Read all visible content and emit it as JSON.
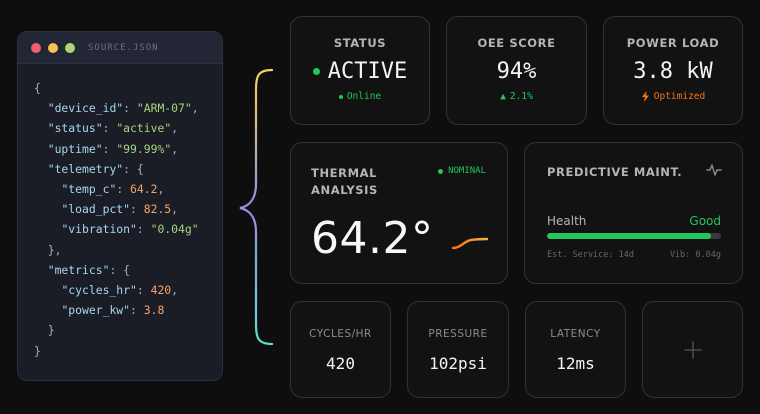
{
  "editor": {
    "filename": "SOURCE.JSON",
    "json": {
      "device_id": "ARM-07",
      "status": "active",
      "uptime": "99.99%",
      "telemetry": {
        "temp_c": "64.2",
        "load_pct": "82.5",
        "vibration": "0.04g"
      },
      "metrics": {
        "cycles_hr": "420",
        "power_kw": "3.8"
      }
    }
  },
  "cards": {
    "status": {
      "label": "STATUS",
      "value": "ACTIVE",
      "sub": "Online"
    },
    "oee": {
      "label": "OEE SCORE",
      "value": "94%",
      "sub": "2.1%"
    },
    "power": {
      "label": "POWER LOAD",
      "value": "3.8 kW",
      "sub": "Optimized"
    },
    "thermal": {
      "label": "THERMAL ANALYSIS",
      "badge": "NOMINAL",
      "value": "64.2°"
    },
    "predictive": {
      "label": "PREDICTIVE MAINT.",
      "health_label": "Health",
      "health_value": "Good",
      "health_fraction": 0.94,
      "est_service": "Est. Service: 14d",
      "vib": "Vib: 0.04g"
    },
    "cycles": {
      "label": "CYCLES/HR",
      "value": "420"
    },
    "pressure": {
      "label": "PRESSURE",
      "value": "102psi"
    },
    "latency": {
      "label": "LATENCY",
      "value": "12ms"
    },
    "add": {
      "icon": "plus-icon"
    }
  },
  "colors": {
    "accent_green": "#23c55e",
    "accent_orange": "#f97316",
    "background": "#0e0e0f"
  }
}
